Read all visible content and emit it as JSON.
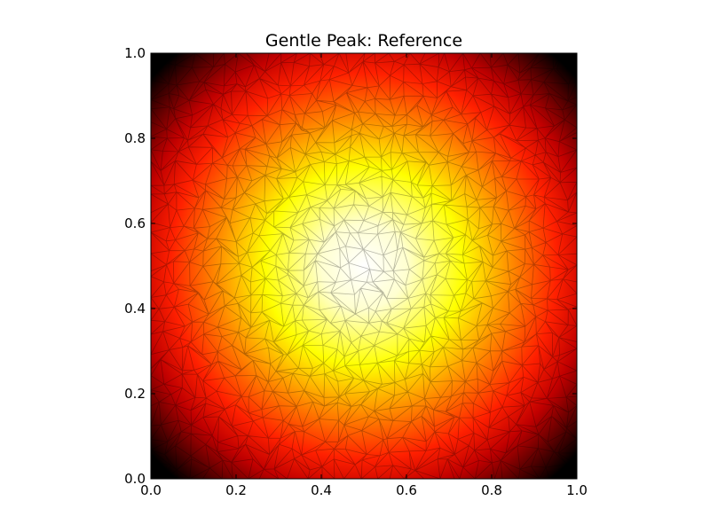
{
  "chart_data": {
    "type": "heatmap",
    "title": "Gentle Peak: Reference",
    "xlabel": "",
    "ylabel": "",
    "xlim": [
      0.0,
      1.0
    ],
    "ylim": [
      0.0,
      1.0
    ],
    "x_ticks": [
      0.0,
      0.2,
      0.4,
      0.6,
      0.8,
      1.0
    ],
    "y_ticks": [
      0.0,
      0.2,
      0.4,
      0.6,
      0.8,
      1.0
    ],
    "x_tick_labels": [
      "0.0",
      "0.2",
      "0.4",
      "0.6",
      "0.8",
      "1.0"
    ],
    "y_tick_labels": [
      "0.0",
      "0.2",
      "0.4",
      "0.6",
      "0.8",
      "1.0"
    ],
    "peak_center": [
      0.5,
      0.5
    ],
    "colormap": "hot",
    "colormap_stops": [
      "#000000",
      "#c00000",
      "#ff2000",
      "#ff8a00",
      "#ffff00",
      "#ffffd0",
      "#ffffff"
    ],
    "overlay": "triangulated mesh",
    "grid": false,
    "legend": "none"
  }
}
